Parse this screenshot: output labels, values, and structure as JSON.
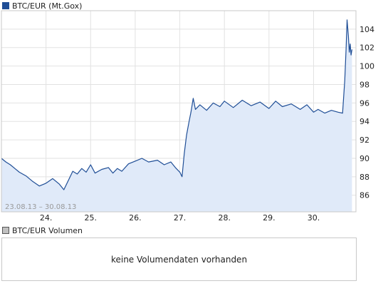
{
  "chart_data": {
    "type": "line",
    "series": [
      {
        "name": "BTC/EUR (Mt.Gox)",
        "color": "#1f4e96",
        "fill": "#e0eaf9",
        "points": [
          [
            23.0,
            90.0
          ],
          [
            23.1,
            89.6
          ],
          [
            23.2,
            89.3
          ],
          [
            23.3,
            88.9
          ],
          [
            23.4,
            88.5
          ],
          [
            23.55,
            88.1
          ],
          [
            23.7,
            87.5
          ],
          [
            23.85,
            87.0
          ],
          [
            24.0,
            87.3
          ],
          [
            24.15,
            87.8
          ],
          [
            24.3,
            87.2
          ],
          [
            24.4,
            86.6
          ],
          [
            24.5,
            87.6
          ],
          [
            24.6,
            88.6
          ],
          [
            24.7,
            88.3
          ],
          [
            24.8,
            88.9
          ],
          [
            24.9,
            88.5
          ],
          [
            25.0,
            89.3
          ],
          [
            25.1,
            88.4
          ],
          [
            25.25,
            88.8
          ],
          [
            25.4,
            89.0
          ],
          [
            25.5,
            88.4
          ],
          [
            25.6,
            88.9
          ],
          [
            25.7,
            88.6
          ],
          [
            25.85,
            89.4
          ],
          [
            26.0,
            89.7
          ],
          [
            26.15,
            90.0
          ],
          [
            26.3,
            89.6
          ],
          [
            26.5,
            89.8
          ],
          [
            26.65,
            89.3
          ],
          [
            26.8,
            89.6
          ],
          [
            26.9,
            89.0
          ],
          [
            27.0,
            88.5
          ],
          [
            27.05,
            88.0
          ],
          [
            27.1,
            90.5
          ],
          [
            27.15,
            92.5
          ],
          [
            27.2,
            93.8
          ],
          [
            27.25,
            95.0
          ],
          [
            27.3,
            96.5
          ],
          [
            27.35,
            95.3
          ],
          [
            27.45,
            95.8
          ],
          [
            27.6,
            95.2
          ],
          [
            27.75,
            96.0
          ],
          [
            27.9,
            95.6
          ],
          [
            28.0,
            96.2
          ],
          [
            28.2,
            95.5
          ],
          [
            28.4,
            96.3
          ],
          [
            28.6,
            95.7
          ],
          [
            28.8,
            96.1
          ],
          [
            29.0,
            95.4
          ],
          [
            29.15,
            96.2
          ],
          [
            29.3,
            95.6
          ],
          [
            29.5,
            95.9
          ],
          [
            29.7,
            95.3
          ],
          [
            29.85,
            95.8
          ],
          [
            30.0,
            95.0
          ],
          [
            30.1,
            95.3
          ],
          [
            30.25,
            94.9
          ],
          [
            30.4,
            95.2
          ],
          [
            30.55,
            95.0
          ],
          [
            30.65,
            94.9
          ],
          [
            30.7,
            98.5
          ],
          [
            30.73,
            102.0
          ],
          [
            30.75,
            105.0
          ],
          [
            30.78,
            103.2
          ],
          [
            30.8,
            101.5
          ],
          [
            30.82,
            102.4
          ],
          [
            30.84,
            101.2
          ],
          [
            30.86,
            101.8
          ]
        ]
      }
    ],
    "x_ticks": [
      {
        "value": 24,
        "label": "24."
      },
      {
        "value": 25,
        "label": "25."
      },
      {
        "value": 26,
        "label": "26."
      },
      {
        "value": 27,
        "label": "27."
      },
      {
        "value": 28,
        "label": "28."
      },
      {
        "value": 29,
        "label": "29."
      },
      {
        "value": 30,
        "label": "30."
      }
    ],
    "y_ticks": [
      {
        "value": 86,
        "label": "86"
      },
      {
        "value": 88,
        "label": "88"
      },
      {
        "value": 90,
        "label": "90"
      },
      {
        "value": 92,
        "label": "92"
      },
      {
        "value": 94,
        "label": "94"
      },
      {
        "value": 96,
        "label": "96"
      },
      {
        "value": 98,
        "label": "98"
      },
      {
        "value": 100,
        "label": "100"
      },
      {
        "value": 102,
        "label": "102"
      },
      {
        "value": 104,
        "label": "104"
      }
    ],
    "xlim": [
      23.0,
      30.95
    ],
    "ylim": [
      84.2,
      106.0
    ],
    "grid": true,
    "annotation": "23.08.13 – 30.08.13"
  },
  "volume": {
    "legend_label": "BTC/EUR Volumen",
    "message": "keine Volumendaten vorhanden"
  }
}
